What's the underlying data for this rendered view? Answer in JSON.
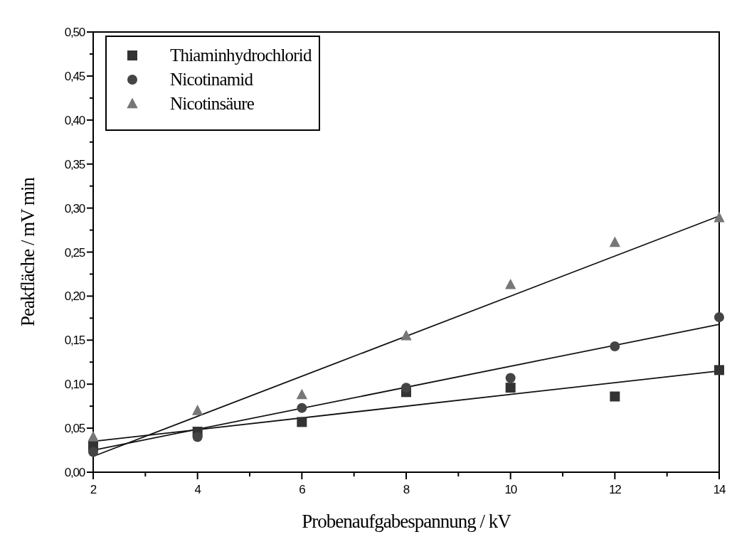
{
  "chart_data": {
    "type": "scatter",
    "xlabel": "Probenaufgabespannung / kV",
    "ylabel": "Peakfläche / mV min",
    "x": [
      2,
      4,
      6,
      8,
      10,
      12,
      14
    ],
    "series": [
      {
        "name": "Thiaminhydrochlorid",
        "color": "#333333",
        "marker": "square",
        "values": [
          0.03,
          0.046,
          0.057,
          0.091,
          0.096,
          0.086,
          0.116
        ]
      },
      {
        "name": "Nicotinamid",
        "color": "#444444",
        "marker": "circle",
        "values": [
          0.023,
          0.04,
          0.073,
          0.096,
          0.107,
          0.143,
          0.176
        ]
      },
      {
        "name": "Nicotinsäure",
        "color": "#777777",
        "marker": "triangle",
        "values": [
          0.04,
          0.07,
          0.088,
          0.155,
          0.213,
          0.261,
          0.289
        ]
      },
      {
        "type": "line",
        "color": "#111111",
        "values": [
          0.035,
          null,
          null,
          null,
          null,
          null,
          0.115
        ]
      },
      {
        "type": "line",
        "color": "#111111",
        "values": [
          0.025,
          null,
          null,
          null,
          null,
          null,
          0.168
        ]
      },
      {
        "type": "line",
        "color": "#111111",
        "values": [
          0.018,
          null,
          null,
          null,
          null,
          null,
          0.291
        ]
      }
    ],
    "xlim": [
      2,
      14
    ],
    "ylim": [
      0,
      0.5
    ],
    "xticks": [
      2,
      {
        "value": 3,
        "label": null
      },
      4,
      {
        "value": 5,
        "label": null
      },
      6,
      {
        "value": 7,
        "label": null
      },
      8,
      {
        "value": 9,
        "label": null
      },
      10,
      {
        "value": 11,
        "label": null
      },
      12,
      {
        "value": 13,
        "label": null
      },
      14
    ],
    "yticks": [
      {
        "value": 0,
        "label": "0,00"
      },
      {
        "value": 0.025,
        "label": null
      },
      {
        "value": 0.05,
        "label": "0,05"
      },
      {
        "value": 0.075,
        "label": null
      },
      {
        "value": 0.1,
        "label": "0,10"
      },
      {
        "value": 0.125,
        "label": null
      },
      {
        "value": 0.15,
        "label": "0,15"
      },
      {
        "value": 0.175,
        "label": null
      },
      {
        "value": 0.2,
        "label": "0,20"
      },
      {
        "value": 0.225,
        "label": null
      },
      {
        "value": 0.25,
        "label": "0,25"
      },
      {
        "value": 0.275,
        "label": null
      },
      {
        "value": 0.3,
        "label": "0,30"
      },
      {
        "value": 0.325,
        "label": null
      },
      {
        "value": 0.35,
        "label": "0,35"
      },
      {
        "value": 0.375,
        "label": null
      },
      {
        "value": 0.4,
        "label": "0,40"
      },
      {
        "value": 0.425,
        "label": null
      },
      {
        "value": 0.45,
        "label": "0,45"
      },
      {
        "value": 0.475,
        "label": null
      },
      {
        "value": 0.5,
        "label": "0,50"
      }
    ],
    "legend": "top left",
    "grid": false
  }
}
